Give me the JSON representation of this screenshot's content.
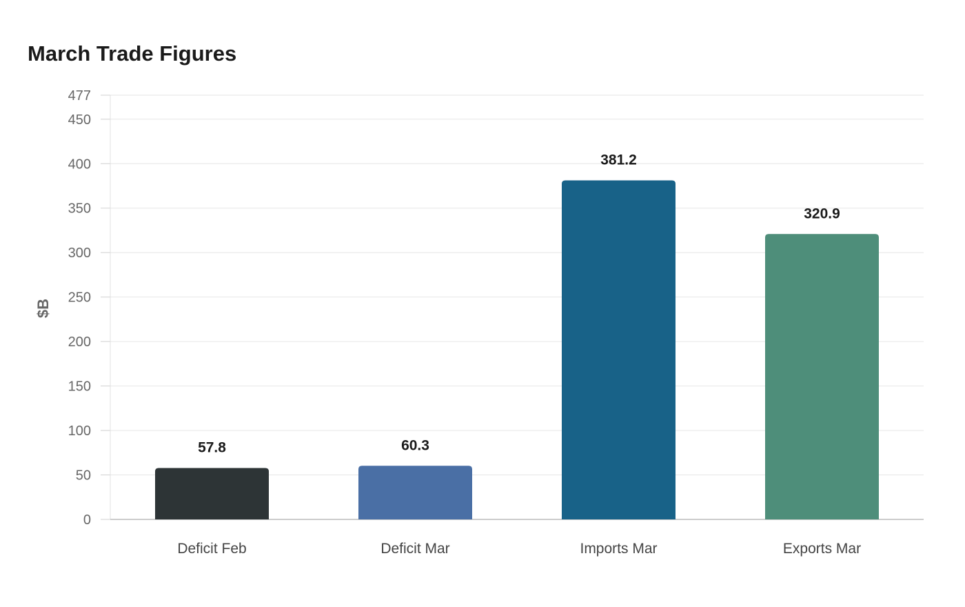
{
  "chart_data": {
    "type": "bar",
    "title": "March Trade Figures",
    "xlabel": "",
    "ylabel": "$B",
    "categories": [
      "Deficit Feb",
      "Deficit Mar",
      "Imports Mar",
      "Exports Mar"
    ],
    "values": [
      57.8,
      60.3,
      381.2,
      320.9
    ],
    "value_labels": [
      "57.8",
      "60.3",
      "381.2",
      "320.9"
    ],
    "colors": [
      "#2d3436",
      "#4a6fa5",
      "#186288",
      "#4e8e7a"
    ],
    "ylim": [
      0,
      477
    ],
    "yticks": [
      0,
      50,
      100,
      150,
      200,
      250,
      300,
      350,
      400,
      450,
      477
    ],
    "grid": true,
    "legend": "none"
  }
}
